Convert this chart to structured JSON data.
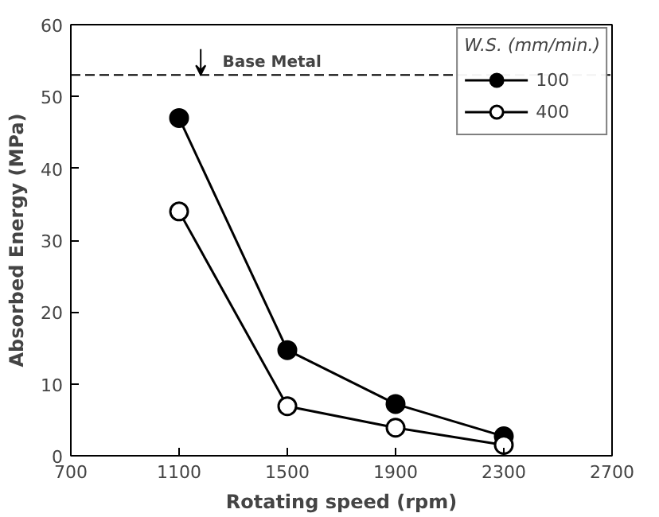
{
  "chart_data": {
    "type": "line",
    "xlabel": "Rotating speed (rpm)",
    "ylabel": "Absorbed Energy (MPa)",
    "legend_title": "W.S. (mm/min.)",
    "x": [
      1100,
      1500,
      1900,
      2300
    ],
    "series": [
      {
        "name": "100",
        "color": "#000000",
        "values": [
          47,
          14.7,
          7.2,
          2.7
        ]
      },
      {
        "name": "400",
        "color": "#000000",
        "values": [
          34,
          6.9,
          3.9,
          1.5
        ]
      }
    ],
    "xlim": [
      700,
      2700
    ],
    "xticks": [
      700,
      1100,
      1500,
      1900,
      2300,
      2700
    ],
    "ylim": [
      0,
      60
    ],
    "yticks": [
      0,
      10,
      20,
      30,
      40,
      50,
      60
    ],
    "ref_lines": [
      {
        "axis": "y",
        "value": 53,
        "label": "Base Metal",
        "line_style": "dashed"
      }
    ],
    "marker": "circle",
    "line_style": "solid",
    "grid": false,
    "legend": "top right"
  }
}
